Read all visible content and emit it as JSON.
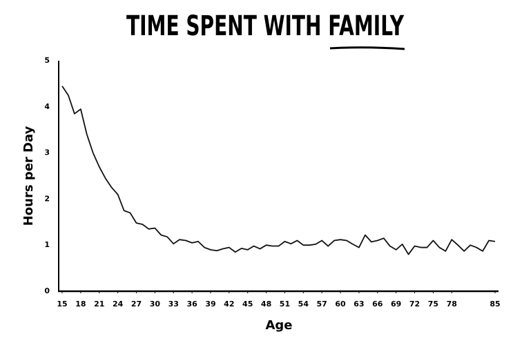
{
  "chart_data": {
    "type": "line",
    "title": "TIME SPENT WITH FAMILY",
    "xlabel": "Age",
    "ylabel": "Hours per Day",
    "x": [
      15,
      16,
      17,
      18,
      19,
      20,
      21,
      22,
      23,
      24,
      25,
      26,
      27,
      28,
      29,
      30,
      31,
      32,
      33,
      34,
      35,
      36,
      37,
      38,
      39,
      40,
      41,
      42,
      43,
      44,
      45,
      46,
      47,
      48,
      49,
      50,
      51,
      52,
      53,
      54,
      55,
      56,
      57,
      58,
      59,
      60,
      61,
      62,
      63,
      64,
      65,
      66,
      67,
      68,
      69,
      70,
      71,
      72,
      73,
      74,
      75,
      76,
      77,
      78,
      79,
      80,
      81,
      82,
      83,
      84,
      85
    ],
    "series": [
      {
        "name": "Hours per Day",
        "color": "#111111",
        "values": [
          4.45,
          4.25,
          3.85,
          3.95,
          3.4,
          3.0,
          2.7,
          2.45,
          2.25,
          2.1,
          1.75,
          1.7,
          1.48,
          1.45,
          1.35,
          1.37,
          1.22,
          1.18,
          1.03,
          1.12,
          1.1,
          1.05,
          1.08,
          0.95,
          0.9,
          0.88,
          0.92,
          0.95,
          0.85,
          0.93,
          0.9,
          0.98,
          0.92,
          1.0,
          0.98,
          0.98,
          1.08,
          1.03,
          1.1,
          1.0,
          1.0,
          1.02,
          1.1,
          0.98,
          1.1,
          1.12,
          1.1,
          1.02,
          0.95,
          1.22,
          1.07,
          1.1,
          1.15,
          0.98,
          0.9,
          1.02,
          0.8,
          0.98,
          0.95,
          0.95,
          1.1,
          0.95,
          0.87,
          1.12,
          1.0,
          0.87,
          1.0,
          0.95,
          0.87,
          1.1,
          1.08
        ]
      }
    ],
    "xlim": [
      15,
      85
    ],
    "ylim": [
      0,
      5
    ],
    "xticks": [
      15,
      18,
      21,
      24,
      27,
      30,
      33,
      36,
      39,
      42,
      45,
      48,
      51,
      54,
      57,
      60,
      63,
      66,
      69,
      72,
      75,
      78,
      85
    ],
    "yticks": [
      0,
      1,
      2,
      3,
      4,
      5
    ],
    "grid": false
  }
}
